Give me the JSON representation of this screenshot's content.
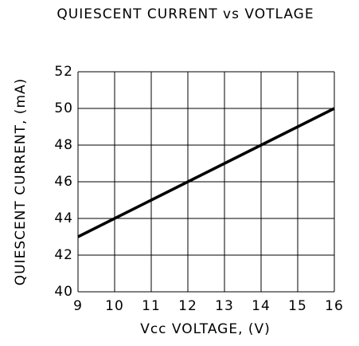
{
  "chart_data": {
    "type": "line",
    "title": "QUIESCENT CURRENT vs VOTLAGE",
    "xlabel": "Vcc VOLTAGE, (V)",
    "ylabel": "QUIESCENT CURRENT, (mA)",
    "x": [
      9,
      10,
      11,
      12,
      13,
      14,
      15,
      16
    ],
    "series": [
      {
        "name": "Quiescent current",
        "color": "#000000",
        "values": [
          43,
          44,
          45,
          46,
          47,
          48,
          49,
          50
        ]
      }
    ],
    "xlim": [
      9,
      16
    ],
    "xticks": [
      9,
      10,
      11,
      12,
      13,
      14,
      15,
      16
    ],
    "ylim": [
      40,
      52
    ],
    "yticks": [
      40,
      42,
      44,
      46,
      48,
      50,
      52
    ],
    "grid": true
  }
}
